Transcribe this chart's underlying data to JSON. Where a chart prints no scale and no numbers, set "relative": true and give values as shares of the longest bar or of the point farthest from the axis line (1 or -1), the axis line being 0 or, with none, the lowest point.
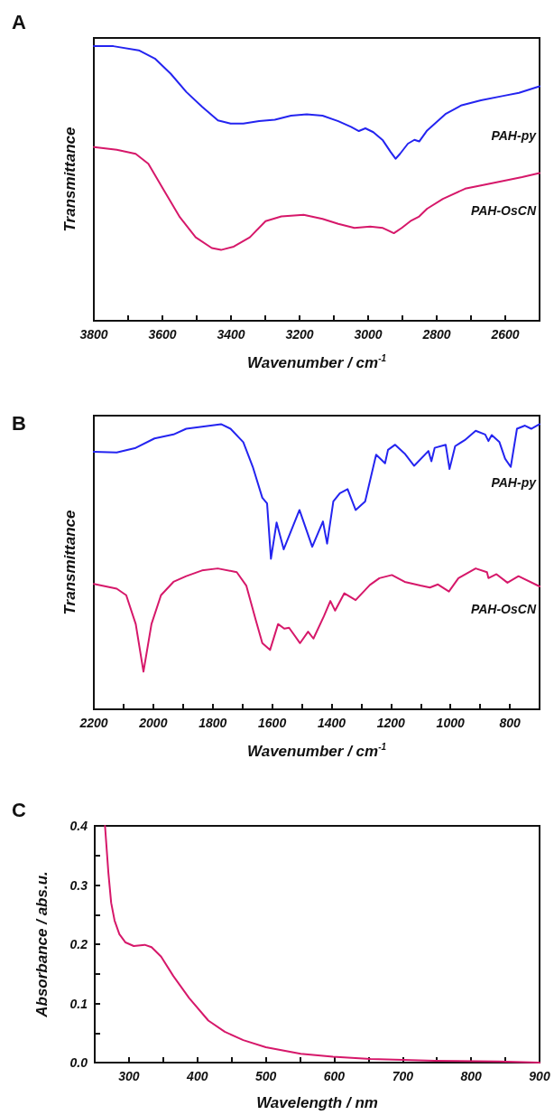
{
  "chart_data": [
    {
      "type": "line",
      "title": "A",
      "xlabel": "Wavenumber / cm$^{-1}$",
      "ylabel": "Transmittance",
      "relative": true,
      "xlim": [
        3800,
        2500
      ],
      "xticks": [
        3800,
        {
          "value": 3700,
          "label": null
        },
        3600,
        {
          "value": 3500,
          "label": null
        },
        3400,
        {
          "value": 3300,
          "label": null
        },
        3200,
        {
          "value": 3100,
          "label": null
        },
        3000,
        {
          "value": 2900,
          "label": null
        },
        2800,
        {
          "value": 2700,
          "label": null
        },
        2600
      ],
      "marker": "none",
      "series": [
        {
          "name": "PAH-py",
          "color": "#2424f0",
          "x": [
            3800,
            3743,
            3669,
            3622,
            3576,
            3530,
            3484,
            3438,
            3401,
            3364,
            3318,
            3272,
            3225,
            3179,
            3133,
            3087,
            3050,
            3027,
            3008,
            2985,
            2957,
            2934,
            2920,
            2907,
            2884,
            2865,
            2851,
            2828,
            2773,
            2727,
            2671,
            2606,
            2560,
            2500
          ],
          "values": [
            1.0,
            1.0,
            0.985,
            0.955,
            0.9,
            0.833,
            0.779,
            0.73,
            0.718,
            0.718,
            0.727,
            0.732,
            0.747,
            0.752,
            0.747,
            0.727,
            0.706,
            0.691,
            0.701,
            0.687,
            0.657,
            0.614,
            0.59,
            0.608,
            0.645,
            0.659,
            0.653,
            0.693,
            0.754,
            0.785,
            0.803,
            0.819,
            0.83,
            0.854
          ]
        },
        {
          "name": "PAH-OsCN",
          "color": "#d6186a",
          "x": [
            3800,
            3733,
            3678,
            3641,
            3595,
            3549,
            3503,
            3456,
            3429,
            3392,
            3345,
            3299,
            3253,
            3188,
            3133,
            3087,
            3040,
            2994,
            2957,
            2925,
            2902,
            2874,
            2851,
            2828,
            2782,
            2717,
            2671,
            2606,
            2551,
            2500
          ],
          "values": [
            0.633,
            0.623,
            0.608,
            0.572,
            0.474,
            0.377,
            0.304,
            0.265,
            0.258,
            0.27,
            0.304,
            0.363,
            0.38,
            0.386,
            0.371,
            0.353,
            0.338,
            0.343,
            0.338,
            0.319,
            0.338,
            0.365,
            0.38,
            0.408,
            0.444,
            0.481,
            0.493,
            0.509,
            0.523,
            0.538
          ]
        }
      ]
    },
    {
      "type": "line",
      "title": "B",
      "xlabel": "Wavenumber / cm$^{-1}$",
      "ylabel": "Transmittance",
      "relative": true,
      "xlim": [
        2200,
        700
      ],
      "xticks": [
        2200,
        {
          "value": 2100,
          "label": null
        },
        2000,
        {
          "value": 1900,
          "label": null
        },
        1800,
        {
          "value": 1700,
          "label": null
        },
        1600,
        {
          "value": 1500,
          "label": null
        },
        1400,
        {
          "value": 1300,
          "label": null
        },
        1200,
        {
          "value": 1100,
          "label": null
        },
        1000,
        {
          "value": 900,
          "label": null
        },
        800
      ],
      "marker": "none",
      "series": [
        {
          "name": "PAH-py",
          "color": "#2424f0",
          "x": [
            2200,
            2123,
            2059,
            1996,
            1932,
            1889,
            1836,
            1772,
            1740,
            1697,
            1665,
            1633,
            1617,
            1604,
            1585,
            1561,
            1508,
            1465,
            1429,
            1415,
            1394,
            1372,
            1346,
            1319,
            1287,
            1250,
            1220,
            1210,
            1186,
            1154,
            1122,
            1074,
            1064,
            1053,
            1016,
            1003,
            984,
            952,
            915,
            883,
            872,
            861,
            835,
            816,
            797,
            776,
            749,
            728,
            700
          ],
          "values": [
            0.903,
            0.901,
            0.917,
            0.95,
            0.964,
            0.984,
            0.991,
            1.0,
            0.984,
            0.937,
            0.85,
            0.742,
            0.722,
            0.528,
            0.655,
            0.561,
            0.699,
            0.57,
            0.659,
            0.581,
            0.729,
            0.758,
            0.772,
            0.699,
            0.729,
            0.893,
            0.863,
            0.91,
            0.928,
            0.897,
            0.854,
            0.906,
            0.87,
            0.917,
            0.928,
            0.843,
            0.923,
            0.944,
            0.977,
            0.964,
            0.941,
            0.962,
            0.937,
            0.879,
            0.85,
            0.984,
            0.995,
            0.984,
            1.0
          ]
        },
        {
          "name": "PAH-OsCN",
          "color": "#d6186a",
          "x": [
            2200,
            2123,
            2091,
            2059,
            2033,
            2006,
            1974,
            1932,
            1889,
            1836,
            1783,
            1719,
            1687,
            1655,
            1633,
            1607,
            1580,
            1559,
            1543,
            1506,
            1479,
            1461,
            1426,
            1404,
            1388,
            1357,
            1319,
            1271,
            1239,
            1197,
            1154,
            1101,
            1069,
            1042,
            1005,
            973,
            915,
            877,
            872,
            845,
            808,
            771,
            700
          ],
          "values": [
            0.44,
            0.423,
            0.4,
            0.299,
            0.132,
            0.299,
            0.4,
            0.447,
            0.467,
            0.487,
            0.494,
            0.481,
            0.434,
            0.313,
            0.232,
            0.208,
            0.299,
            0.283,
            0.286,
            0.232,
            0.272,
            0.248,
            0.326,
            0.38,
            0.346,
            0.407,
            0.383,
            0.436,
            0.46,
            0.471,
            0.447,
            0.434,
            0.427,
            0.438,
            0.413,
            0.46,
            0.494,
            0.481,
            0.46,
            0.474,
            0.444,
            0.467,
            0.431
          ]
        }
      ]
    },
    {
      "type": "line",
      "title": "C",
      "xlabel": "Wavelength / nm",
      "ylabel": "Absorbance / abs.u.",
      "xlim": [
        250,
        900
      ],
      "xticks": [
        300,
        {
          "value": 350,
          "label": null
        },
        400,
        {
          "value": 450,
          "label": null
        },
        500,
        {
          "value": 550,
          "label": null
        },
        600,
        {
          "value": 650,
          "label": null
        },
        700,
        {
          "value": 750,
          "label": null
        },
        800,
        {
          "value": 850,
          "label": null
        },
        900
      ],
      "ylim": [
        0,
        0.4
      ],
      "yticks": [
        {
          "value": 0,
          "label": "0.0"
        },
        {
          "value": 0.05,
          "label": null
        },
        0.1,
        {
          "value": 0.15,
          "label": null
        },
        0.2,
        {
          "value": 0.25,
          "label": null
        },
        0.3,
        {
          "value": 0.35,
          "label": null
        },
        0.4
      ],
      "marker": "none",
      "series": [
        {
          "color": "#d6186a",
          "x": [
            265,
            270,
            274,
            279,
            286,
            295,
            307,
            323,
            333,
            347,
            365,
            388,
            416,
            440,
            467,
            500,
            551,
            598,
            653,
            747,
            840,
            900
          ],
          "values": [
            0.4,
            0.32,
            0.27,
            0.24,
            0.217,
            0.203,
            0.197,
            0.199,
            0.195,
            0.179,
            0.146,
            0.109,
            0.071,
            0.052,
            0.038,
            0.026,
            0.015,
            0.01,
            0.006,
            0.003,
            0.002,
            0.0
          ]
        }
      ]
    }
  ]
}
